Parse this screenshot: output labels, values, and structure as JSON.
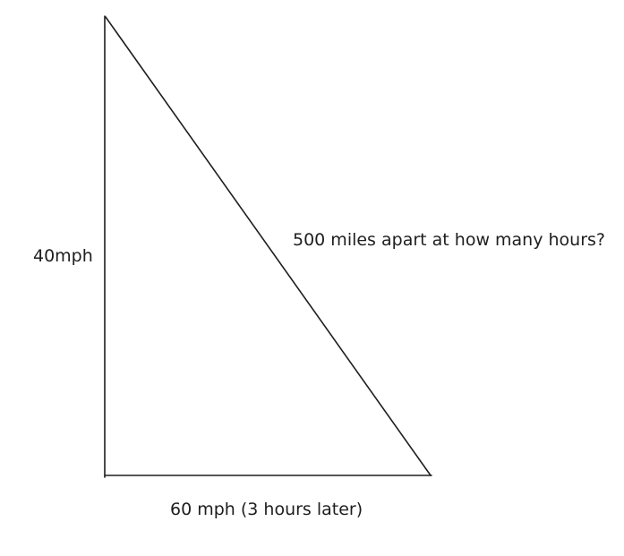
{
  "diagram": {
    "type": "right-triangle",
    "stroke_color": "#1e1e1e",
    "labels": {
      "vertical_side": "40mph",
      "hypotenuse": "500 miles apart at how many hours?",
      "base_side": "60 mph (3 hours later)"
    }
  }
}
